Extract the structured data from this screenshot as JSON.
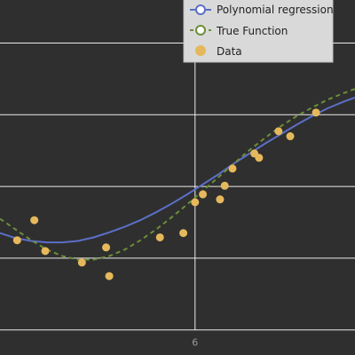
{
  "chart_data": {
    "type": "scatter",
    "xlim": [
      3.5,
      8.05
    ],
    "ylim": [
      -1.35,
      3.6
    ],
    "x_tick_values": [
      6
    ],
    "x_tick_labels": [
      "6"
    ],
    "y_gridlines": [
      -1,
      0,
      1,
      2,
      3
    ],
    "grid": true,
    "legend_placement": "top-right",
    "series": [
      {
        "name": "Polynomial regression",
        "kind": "line",
        "color": "#5b6fc7",
        "style": "solid",
        "x": [
          3.5,
          3.7,
          3.9,
          4.1,
          4.3,
          4.5,
          4.7,
          4.9,
          5.1,
          5.3,
          5.5,
          5.7,
          5.9,
          6.1,
          6.3,
          6.5,
          6.7,
          6.9,
          7.1,
          7.3,
          7.5,
          7.7,
          7.9,
          8.05
        ],
        "y": [
          0.35,
          0.28,
          0.24,
          0.22,
          0.22,
          0.24,
          0.29,
          0.36,
          0.44,
          0.53,
          0.64,
          0.76,
          0.89,
          1.03,
          1.17,
          1.32,
          1.46,
          1.6,
          1.73,
          1.86,
          1.98,
          2.09,
          2.18,
          2.24
        ]
      },
      {
        "name": "True Function",
        "kind": "line",
        "color": "#6b8e3a",
        "style": "dashed",
        "x": [
          3.5,
          3.7,
          3.9,
          4.1,
          4.3,
          4.5,
          4.7,
          4.9,
          5.1,
          5.3,
          5.5,
          5.7,
          5.9,
          6.1,
          6.3,
          6.5,
          6.7,
          6.9,
          7.1,
          7.3,
          7.5,
          7.7,
          7.9,
          8.05
        ],
        "y": [
          0.55,
          0.4,
          0.25,
          0.12,
          0.03,
          -0.02,
          -0.02,
          0.03,
          0.12,
          0.25,
          0.4,
          0.57,
          0.75,
          0.94,
          1.13,
          1.32,
          1.51,
          1.68,
          1.84,
          1.98,
          2.1,
          2.21,
          2.3,
          2.36
        ]
      },
      {
        "name": "Data",
        "kind": "scatter",
        "color": "#e6b85c",
        "x": [
          3.72,
          3.94,
          4.08,
          4.55,
          4.86,
          4.9,
          5.55,
          5.85,
          6.0,
          6.1,
          6.32,
          6.38,
          6.48,
          6.76,
          6.82,
          7.07,
          7.22,
          7.55
        ],
        "y": [
          0.25,
          0.53,
          0.1,
          -0.06,
          0.15,
          -0.25,
          0.29,
          0.35,
          0.78,
          0.89,
          0.82,
          1.01,
          1.25,
          1.46,
          1.4,
          1.77,
          1.7,
          2.03
        ]
      }
    ]
  }
}
